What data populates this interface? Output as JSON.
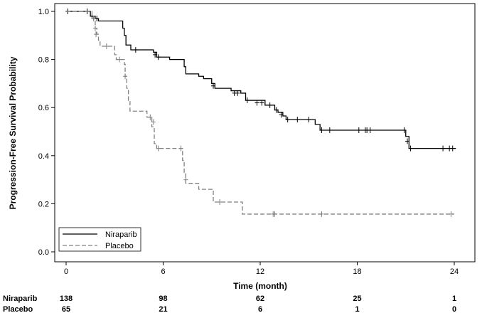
{
  "chart_data": {
    "type": "line",
    "subtype": "kaplan-meier step",
    "xlabel": "Time (month)",
    "ylabel": "Progression-Free Survival Probability",
    "xlim": [
      0,
      24
    ],
    "ylim": [
      0,
      1
    ],
    "xticks": [
      "0",
      "6",
      "12",
      "18",
      "24"
    ],
    "yticks": [
      "0.0",
      "0.2",
      "0.4",
      "0.6",
      "0.8",
      "1.0"
    ],
    "grid": false,
    "legend_position": "bottom-left",
    "series": [
      {
        "name": "Niraparib",
        "color": "#000000",
        "style": "solid",
        "steps": [
          [
            0,
            1.0
          ],
          [
            1.5,
            0.98
          ],
          [
            1.8,
            0.97
          ],
          [
            2.0,
            0.96
          ],
          [
            3.5,
            0.93
          ],
          [
            3.6,
            0.9
          ],
          [
            3.7,
            0.86
          ],
          [
            4.0,
            0.84
          ],
          [
            5.4,
            0.83
          ],
          [
            5.6,
            0.81
          ],
          [
            6.4,
            0.8
          ],
          [
            7.3,
            0.77
          ],
          [
            7.4,
            0.74
          ],
          [
            8.2,
            0.73
          ],
          [
            8.5,
            0.72
          ],
          [
            9.0,
            0.7
          ],
          [
            9.2,
            0.68
          ],
          [
            10.2,
            0.67
          ],
          [
            10.8,
            0.66
          ],
          [
            11.1,
            0.63
          ],
          [
            12.3,
            0.61
          ],
          [
            12.9,
            0.59
          ],
          [
            13.1,
            0.58
          ],
          [
            13.4,
            0.565
          ],
          [
            13.6,
            0.55
          ],
          [
            15.4,
            0.53
          ],
          [
            15.7,
            0.506
          ],
          [
            21.0,
            0.48
          ],
          [
            21.2,
            0.43
          ],
          [
            24.1,
            0.43
          ]
        ],
        "censored": [
          [
            0.1,
            1.0
          ],
          [
            1.3,
            1.0
          ],
          [
            1.6,
            0.98
          ],
          [
            1.9,
            0.97
          ],
          [
            4.3,
            0.84
          ],
          [
            5.5,
            0.82
          ],
          [
            5.7,
            0.81
          ],
          [
            9.1,
            0.69
          ],
          [
            10.4,
            0.66
          ],
          [
            10.6,
            0.66
          ],
          [
            11.2,
            0.63
          ],
          [
            11.8,
            0.62
          ],
          [
            12.1,
            0.62
          ],
          [
            12.6,
            0.61
          ],
          [
            13.0,
            0.59
          ],
          [
            13.3,
            0.57
          ],
          [
            13.7,
            0.55
          ],
          [
            14.3,
            0.55
          ],
          [
            15.0,
            0.55
          ],
          [
            15.8,
            0.506
          ],
          [
            16.3,
            0.506
          ],
          [
            18.1,
            0.506
          ],
          [
            18.5,
            0.506
          ],
          [
            18.6,
            0.506
          ],
          [
            18.8,
            0.506
          ],
          [
            20.9,
            0.506
          ],
          [
            21.1,
            0.46
          ],
          [
            21.3,
            0.43
          ],
          [
            23.3,
            0.43
          ],
          [
            23.7,
            0.43
          ],
          [
            23.9,
            0.43
          ]
        ]
      },
      {
        "name": "Placebo",
        "color": "#808080",
        "style": "dashed",
        "steps": [
          [
            0,
            1.0
          ],
          [
            1.6,
            0.98
          ],
          [
            1.7,
            0.96
          ],
          [
            1.8,
            0.93
          ],
          [
            1.9,
            0.905
          ],
          [
            2.0,
            0.88
          ],
          [
            2.1,
            0.855
          ],
          [
            3.0,
            0.82
          ],
          [
            3.1,
            0.8
          ],
          [
            3.6,
            0.78
          ],
          [
            3.65,
            0.73
          ],
          [
            3.75,
            0.68
          ],
          [
            3.85,
            0.63
          ],
          [
            3.95,
            0.585
          ],
          [
            5.0,
            0.56
          ],
          [
            5.3,
            0.52
          ],
          [
            5.45,
            0.45
          ],
          [
            5.6,
            0.43
          ],
          [
            7.2,
            0.38
          ],
          [
            7.3,
            0.33
          ],
          [
            7.4,
            0.285
          ],
          [
            8.2,
            0.26
          ],
          [
            9.1,
            0.207
          ],
          [
            10.9,
            0.157
          ],
          [
            24.0,
            0.157
          ]
        ],
        "censored": [
          [
            1.7,
            0.97
          ],
          [
            1.8,
            0.93
          ],
          [
            1.85,
            0.905
          ],
          [
            2.5,
            0.855
          ],
          [
            3.3,
            0.8
          ],
          [
            3.65,
            0.73
          ],
          [
            5.2,
            0.56
          ],
          [
            5.4,
            0.54
          ],
          [
            5.7,
            0.43
          ],
          [
            7.1,
            0.43
          ],
          [
            7.4,
            0.3
          ],
          [
            9.5,
            0.207
          ],
          [
            12.8,
            0.157
          ],
          [
            12.9,
            0.157
          ],
          [
            15.8,
            0.157
          ],
          [
            23.8,
            0.157
          ]
        ]
      }
    ],
    "risk_table": {
      "times": [
        0,
        6,
        12,
        18,
        24
      ],
      "rows": [
        {
          "label": "Niraparib",
          "values": [
            "138",
            "98",
            "62",
            "25",
            "1"
          ]
        },
        {
          "label": "Placebo",
          "values": [
            "65",
            "21",
            "6",
            "1",
            "0"
          ]
        }
      ]
    }
  }
}
